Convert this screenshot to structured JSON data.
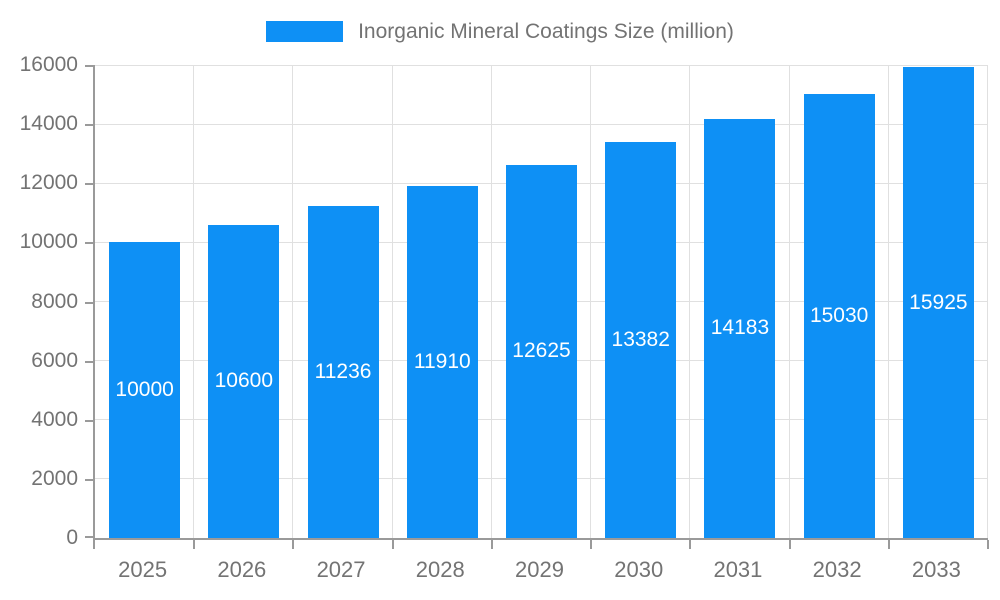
{
  "chart_data": {
    "type": "bar",
    "title": "Inorganic Mineral Coatings Size (million)",
    "series_name": "Inorganic Mineral Coatings Size (million)",
    "categories": [
      "2025",
      "2026",
      "2027",
      "2028",
      "2029",
      "2030",
      "2031",
      "2032",
      "2033"
    ],
    "values": [
      10000,
      10600,
      11236,
      11910,
      12625,
      13382,
      14183,
      15030,
      15925
    ],
    "xlabel": "",
    "ylabel": "",
    "ylim": [
      0,
      16000
    ],
    "ytick_step": 2000,
    "ytick_labels": [
      "0",
      "2000",
      "4000",
      "6000",
      "8000",
      "10000",
      "12000",
      "14000",
      "16000"
    ],
    "grid": true,
    "legend_position": "top",
    "value_labels": "inside-center",
    "colors": {
      "bar": "#0e90f5",
      "value_label": "#ffffff",
      "axis_text": "#737373",
      "grid_line": "#e0e0e0",
      "axis_line": "#9a9a9a",
      "background": "#ffffff"
    }
  }
}
